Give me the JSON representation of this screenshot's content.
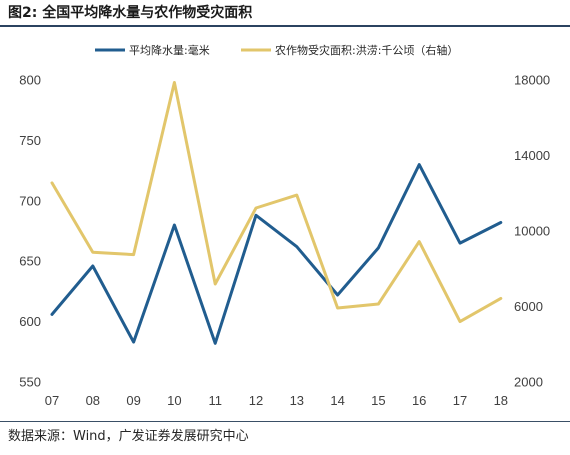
{
  "source": "数据来源：Wind，广发证券发展研究中心",
  "chart_data": {
    "type": "line",
    "title": "图2: 全国平均降水量与农作物受灾面积",
    "categories": [
      "07",
      "08",
      "09",
      "10",
      "11",
      "12",
      "13",
      "14",
      "15",
      "16",
      "17",
      "18"
    ],
    "series": [
      {
        "name": "平均降水量:毫米",
        "right_axis": false,
        "color": "#215d8f",
        "values": [
          606,
          646,
          583,
          680,
          582,
          688,
          662,
          622,
          661,
          730,
          665,
          682
        ]
      },
      {
        "name": "农作物受灾面积:洪涝:千公顷（右轴）",
        "right_axis": true,
        "color": "#e2c66b",
        "values": [
          12550,
          8870,
          8750,
          17870,
          7190,
          11220,
          11900,
          5920,
          6130,
          9440,
          5200,
          6430
        ]
      }
    ],
    "y_left": {
      "min": 550,
      "max": 800,
      "ticks": [
        550,
        600,
        650,
        700,
        750,
        800
      ]
    },
    "y_right": {
      "min": 2000,
      "max": 18000,
      "ticks": [
        2000,
        6000,
        10000,
        14000,
        18000
      ]
    },
    "grid": false,
    "legend_position": "top"
  }
}
